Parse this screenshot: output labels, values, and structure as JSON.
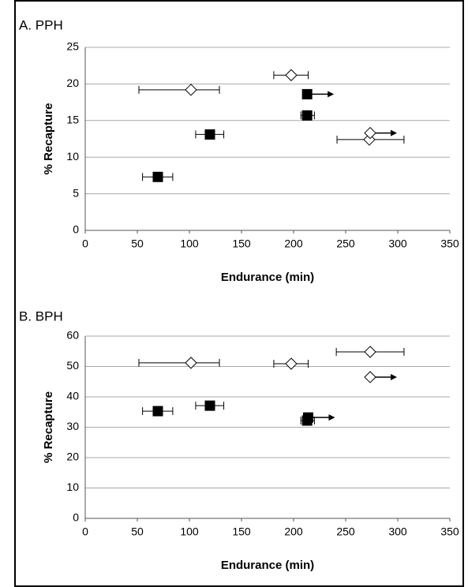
{
  "chart_data": [
    {
      "type": "scatter",
      "title": "A. PPH",
      "x_label": "Endurance (min)",
      "y_label": "% Recapture",
      "xlim": [
        0,
        350
      ],
      "xticks": [
        0,
        50,
        100,
        150,
        200,
        250,
        300,
        350
      ],
      "ylim": [
        0,
        25
      ],
      "yticks": [
        0,
        5,
        10,
        15,
        20,
        25
      ],
      "grid": true,
      "series": [
        {
          "marker": "diamond",
          "color": "#ffffff",
          "x": [
            101.5,
            197.7,
            272.7,
            273.5
          ],
          "values": [
            19.2,
            21.2,
            12.4,
            13.3
          ],
          "x_lo": [
            51.5,
            181,
            241.7,
            null
          ],
          "x_hi": [
            128.8,
            214,
            306,
            null
          ],
          "arrow": [
            false,
            false,
            false,
            true
          ]
        },
        {
          "marker": "square",
          "color": "#000000",
          "x": [
            69.7,
            119.7,
            213,
            213
          ],
          "values": [
            7.3,
            13.1,
            15.7,
            18.6
          ],
          "x_lo": [
            55,
            106,
            207,
            null
          ],
          "x_hi": [
            84,
            133,
            220,
            null
          ],
          "arrow": [
            false,
            false,
            false,
            true
          ]
        }
      ]
    },
    {
      "type": "scatter",
      "title": "B. BPH",
      "x_label": "Endurance (min)",
      "y_label": "% Recapture",
      "xlim": [
        0,
        350
      ],
      "xticks": [
        0,
        50,
        100,
        150,
        200,
        250,
        300,
        350
      ],
      "ylim": [
        0,
        60
      ],
      "yticks": [
        0,
        10,
        20,
        30,
        40,
        50,
        60
      ],
      "grid": true,
      "series": [
        {
          "marker": "diamond",
          "color": "#ffffff",
          "x": [
            101.5,
            197.7,
            273.5,
            273.5
          ],
          "values": [
            51.2,
            50.9,
            54.8,
            46.5
          ],
          "x_lo": [
            51.5,
            181,
            241,
            null
          ],
          "x_hi": [
            128.8,
            214,
            306,
            null
          ],
          "arrow": [
            false,
            false,
            false,
            true
          ]
        },
        {
          "marker": "square",
          "color": "#000000",
          "x": [
            69.7,
            119.7,
            213,
            214
          ],
          "values": [
            35.3,
            37.1,
            32.2,
            33.2
          ],
          "x_lo": [
            55,
            106,
            207,
            null
          ],
          "x_hi": [
            84,
            133,
            220,
            null
          ],
          "arrow": [
            false,
            false,
            false,
            true
          ]
        }
      ]
    }
  ]
}
